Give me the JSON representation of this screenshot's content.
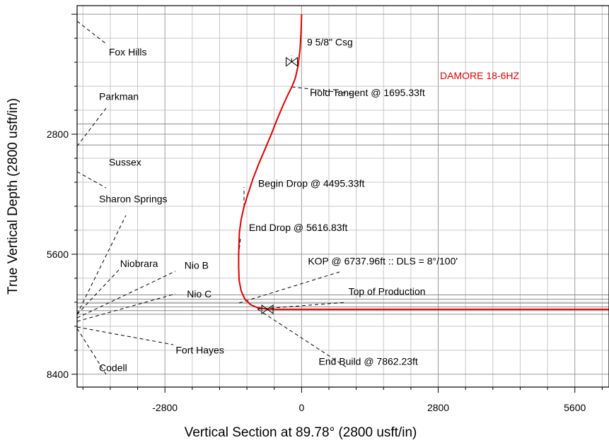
{
  "chart_data": {
    "type": "line",
    "well_name": "DAMORE 18-6HZ",
    "xlabel": "Vertical Section at 89.78° (2800 usft/in)",
    "ylabel": "True Vertical Depth (2800 usft/in)",
    "xlim": [
      -4600,
      6300
    ],
    "ylim": [
      8700,
      -200
    ],
    "y_inverted": true,
    "grid": true,
    "grid_minor_step": 560,
    "x_ticks": [
      {
        "value": -2800,
        "label": "-2800"
      },
      {
        "value": 0,
        "label": "0"
      },
      {
        "value": 2800,
        "label": "2800"
      },
      {
        "value": 5600,
        "label": "5600"
      }
    ],
    "y_ticks": [
      {
        "value": 2800,
        "label": "2800"
      },
      {
        "value": 5600,
        "label": "5600"
      },
      {
        "value": 8400,
        "label": "8400"
      }
    ],
    "colors": {
      "well_path": "#dd0000",
      "well_label": "#dd0000",
      "grid": "#b8b8b8",
      "axis": "#000000"
    },
    "well_path": {
      "x": [
        0,
        -10,
        -30,
        -70,
        -130,
        -200,
        -290,
        -390,
        -500,
        -620,
        -750,
        -880,
        -1000,
        -1100,
        -1180,
        -1240,
        -1275,
        -1290,
        -1290,
        -1280,
        -1240,
        -1160,
        -1040,
        -900,
        -700,
        -500,
        0,
        1000,
        2000,
        3000,
        4000,
        5000,
        6300
      ],
      "y": [
        0,
        400,
        800,
        1200,
        1500,
        1695,
        1900,
        2150,
        2450,
        2800,
        3150,
        3500,
        3850,
        4200,
        4495,
        4800,
        5100,
        5617,
        5900,
        6200,
        6450,
        6650,
        6780,
        6850,
        6880,
        6885,
        6885,
        6885,
        6885,
        6885,
        6885,
        6885,
        6885
      ]
    },
    "formation_tops": [
      {
        "name": "Fox Hills",
        "x": -3950,
        "y": 960
      },
      {
        "name": "Parkman",
        "x": -4150,
        "y": 2000
      },
      {
        "name": "Sussex",
        "x": -3950,
        "y": 3530
      },
      {
        "name": "Sharon Springs",
        "x": -4150,
        "y": 4390
      },
      {
        "name": "Niobrara",
        "x": -3720,
        "y": 5900
      },
      {
        "name": "Nio B",
        "x": -2400,
        "y": 5940
      },
      {
        "name": "Nio C",
        "x": -2350,
        "y": 6610
      },
      {
        "name": "Fort Hayes",
        "x": -2580,
        "y": 7920
      },
      {
        "name": "Codell",
        "x": -4150,
        "y": 8330
      }
    ],
    "formation_lines": [
      {
        "depth": 2560
      },
      {
        "depth": 3050
      },
      {
        "depth": 6550
      },
      {
        "depth": 6650
      },
      {
        "depth": 6740
      },
      {
        "depth": 6830
      },
      {
        "depth": 6915
      },
      {
        "depth": 7000
      }
    ],
    "annotations": [
      {
        "text": "9 5/8\" Csg",
        "x": 110,
        "y": 730,
        "target_x": -200,
        "target_y": 1110,
        "marker": "casing"
      },
      {
        "text": "Hold Tangent @ 1695.33ft",
        "x": 170,
        "y": 1910,
        "target_x": -200,
        "target_y": 1695
      },
      {
        "text": "Begin Drop @ 4495.33ft",
        "x": -890,
        "y": 4030,
        "target_x": -1180,
        "target_y": 4495
      },
      {
        "text": "End Drop @ 5616.83ft",
        "x": -1080,
        "y": 5060,
        "target_x": -1290,
        "target_y": 5617
      },
      {
        "text": "KOP @ 6737.96ft :: DLS = 8°/100'",
        "x": 130,
        "y": 5840,
        "target_x": -1280,
        "target_y": 6738
      },
      {
        "text": "Top of Production",
        "x": 960,
        "y": 6550,
        "target_x": -900,
        "target_y": 6880
      },
      {
        "text": "End Build @ 7862.23ft",
        "x": 350,
        "y": 8180,
        "target_x": -900,
        "target_y": 6885
      }
    ]
  }
}
